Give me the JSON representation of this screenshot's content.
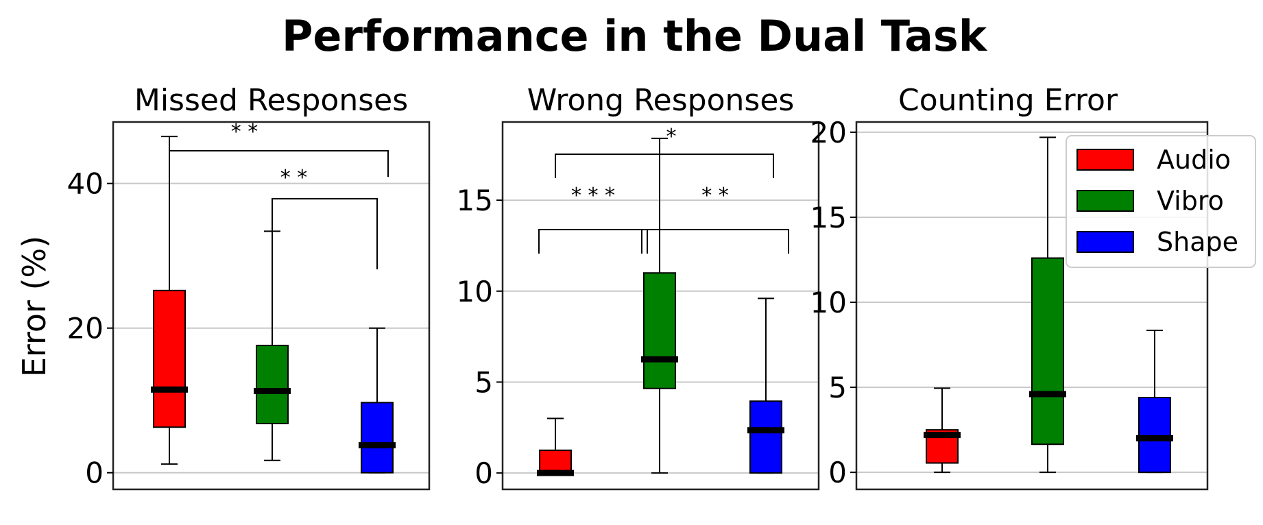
{
  "title": "Performance in the Dual Task",
  "ylabel": "Error  (%)",
  "legend": {
    "placement": "top-right",
    "entries": [
      {
        "label": "Audio",
        "color": "#ff0000"
      },
      {
        "label": "Vibro",
        "color": "#008000"
      },
      {
        "label": "Shape",
        "color": "#0000ff"
      }
    ]
  },
  "chart_data": [
    {
      "type": "box",
      "title": "Missed Responses",
      "categories": [
        "Audio",
        "Vibro",
        "Shape"
      ],
      "ylim": [
        -2.3,
        48.5
      ],
      "yticks": [
        0,
        20,
        40
      ],
      "grid": true,
      "boxes": [
        {
          "whislo": 1.2,
          "q1": 6.3,
          "med": 11.5,
          "q3": 25.2,
          "whishi": 46.5
        },
        {
          "whislo": 1.7,
          "q1": 6.8,
          "med": 11.3,
          "q3": 17.6,
          "whishi": 33.4
        },
        {
          "whislo": 0.0,
          "q1": 0.0,
          "med": 3.8,
          "q3": 9.7,
          "whishi": 20.0
        }
      ],
      "significance": [
        {
          "from": 0,
          "to": 2,
          "label": "* *"
        },
        {
          "from": 1,
          "to": 2,
          "label": "* *"
        }
      ]
    },
    {
      "type": "box",
      "title": "Wrong Responses",
      "categories": [
        "Audio",
        "Vibro",
        "Shape"
      ],
      "ylim": [
        -0.9,
        19.3
      ],
      "yticks": [
        0,
        5,
        10,
        15
      ],
      "grid": true,
      "boxes": [
        {
          "whislo": 0.0,
          "q1": 0.0,
          "med": 0.0,
          "q3": 1.25,
          "whishi": 3.0
        },
        {
          "whislo": 0.0,
          "q1": 4.65,
          "med": 6.25,
          "q3": 11.0,
          "whishi": 18.4
        },
        {
          "whislo": 0.0,
          "q1": 0.0,
          "med": 2.35,
          "q3": 3.95,
          "whishi": 9.6
        }
      ],
      "significance": [
        {
          "from": 0,
          "to": 2,
          "label": "*"
        },
        {
          "from": 0,
          "to": 1,
          "label": "* * *"
        },
        {
          "from": 1,
          "to": 2,
          "label": "* *"
        }
      ]
    },
    {
      "type": "box",
      "title": "Counting Error",
      "categories": [
        "Audio",
        "Vibro",
        "Shape"
      ],
      "ylim": [
        -1.0,
        20.6
      ],
      "yticks": [
        0,
        5,
        10,
        15,
        20
      ],
      "grid": true,
      "boxes": [
        {
          "whislo": 0.0,
          "q1": 0.55,
          "med": 2.2,
          "q3": 2.5,
          "whishi": 4.95
        },
        {
          "whislo": 0.0,
          "q1": 1.65,
          "med": 4.6,
          "q3": 12.6,
          "whishi": 19.7
        },
        {
          "whislo": 0.0,
          "q1": 0.0,
          "med": 2.0,
          "q3": 4.4,
          "whishi": 8.35
        }
      ],
      "significance": []
    }
  ]
}
